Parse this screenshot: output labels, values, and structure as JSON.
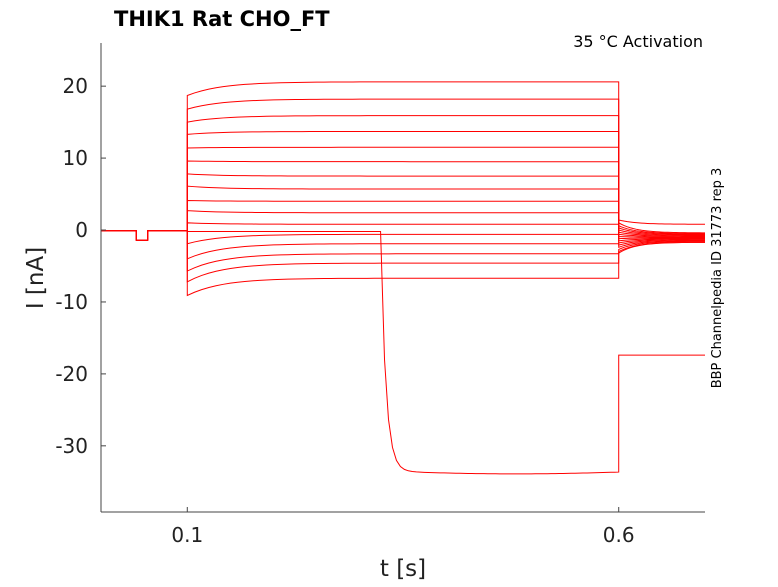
{
  "chart_data": {
    "type": "line",
    "title": "THIK1  Rat  CHO_FT",
    "annotation": "35 °C  Activation",
    "side_label": "BBP Channelpedia ID 31773 rep 3",
    "xlabel": "t [s]",
    "ylabel": "I [nA]",
    "xlim": [
      0.0,
      0.7
    ],
    "ylim": [
      -39.2,
      26
    ],
    "xticks": [
      0.1,
      0.6
    ],
    "xtick_labels": [
      "0.1",
      "0.6"
    ],
    "yticks": [
      20,
      10,
      0,
      -10,
      -20,
      -30
    ],
    "ytick_labels": [
      "20",
      "10",
      "0",
      "-10",
      "-20",
      "-30"
    ],
    "grid": false,
    "color": "#ff0000",
    "step_on": 0.1,
    "step_off": 0.6,
    "baseline": -0.1,
    "artifact": {
      "t_start": 0.041,
      "t_end": 0.054,
      "value": -1.4
    },
    "sweeps": [
      {
        "step_start": 18.7,
        "step_end": 20.6,
        "tail_start": 1.4,
        "tail_end": 0.8
      },
      {
        "step_start": 16.8,
        "step_end": 18.2,
        "tail_start": 1.0,
        "tail_end": -0.4
      },
      {
        "step_start": 15.0,
        "step_end": 15.9,
        "tail_start": 0.6,
        "tail_end": -0.5
      },
      {
        "step_start": 13.3,
        "step_end": 13.7,
        "tail_start": 0.3,
        "tail_end": -0.6
      },
      {
        "step_start": 11.4,
        "step_end": 11.5,
        "tail_start": 0.0,
        "tail_end": -0.7
      },
      {
        "step_start": 9.6,
        "step_end": 9.5,
        "tail_start": -0.3,
        "tail_end": -0.8
      },
      {
        "step_start": 7.8,
        "step_end": 7.5,
        "tail_start": -0.6,
        "tail_end": -0.9
      },
      {
        "step_start": 6.1,
        "step_end": 5.7,
        "tail_start": -0.9,
        "tail_end": -1.0
      },
      {
        "step_start": 4.1,
        "step_end": 4.0,
        "tail_start": -1.2,
        "tail_end": -1.1
      },
      {
        "step_start": 2.7,
        "step_end": 2.4,
        "tail_start": -1.5,
        "tail_end": -1.2
      },
      {
        "step_start": 1.0,
        "step_end": 0.8,
        "tail_start": -1.8,
        "tail_end": -1.3
      },
      {
        "step_start": -1.9,
        "step_end": -0.6,
        "tail_start": -2.1,
        "tail_end": -1.4
      },
      {
        "step_start": -4.0,
        "step_end": -1.9,
        "tail_start": -2.4,
        "tail_end": -1.5
      },
      {
        "step_start": -5.7,
        "step_end": -3.3,
        "tail_start": -2.7,
        "tail_end": -1.6
      },
      {
        "step_start": -7.2,
        "step_end": -4.6,
        "tail_start": -3.0,
        "tail_end": -1.7
      },
      {
        "step_start": -9.1,
        "step_end": -6.7,
        "tail_start": -3.2,
        "tail_end": -1.7
      }
    ],
    "breakdown_sweep": {
      "pre_value": -0.2,
      "drop_time": 0.324,
      "drop_value": -33.5,
      "step_end": -33.5,
      "tail_value": -17.4
    }
  }
}
